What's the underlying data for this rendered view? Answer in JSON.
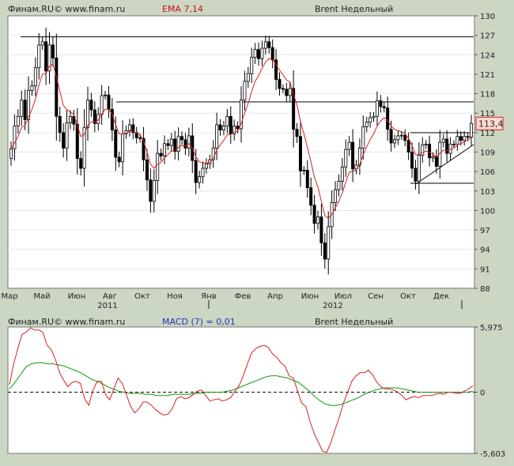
{
  "colors": {
    "background": "#cbd6c3",
    "plot_bg": "#ffffff",
    "candle": "#000000",
    "ema": "#d82020",
    "macd": "#d82020",
    "signal": "#0c9a0c",
    "last_price_box": "#ffd9d2",
    "last_price_border": "#d82020"
  },
  "chart_data": [
    {
      "type": "candlestick",
      "header": {
        "source": "Финам.RU© www.finam.ru",
        "indicator": "EMA 7,14",
        "title": "Brent Недельный"
      },
      "last_price_label": "113,4",
      "last_price": 113.4,
      "ylim": [
        88,
        130
      ],
      "y_ticks": [
        "130",
        "127",
        "124",
        "121",
        "118",
        "115",
        "112",
        "109",
        "106",
        "103",
        "100",
        "97",
        "94",
        "91",
        "88"
      ],
      "x_ticks": [
        "Мар",
        "Май",
        "Июн",
        "Авг",
        "Окт",
        "Ноя",
        "Янв",
        "Фев",
        "Апр",
        "Июн",
        "Июл",
        "Сен",
        "Окт",
        "Дек"
      ],
      "year_labels": [
        "2011",
        "2012"
      ],
      "closes": [
        109.5,
        113.0,
        114.5,
        117.0,
        114.0,
        118.5,
        119.2,
        122.0,
        125.5,
        126.0,
        121.5,
        125.5,
        123.5,
        114.5,
        112.0,
        109.6,
        113.5,
        114.5,
        113.3,
        108.0,
        106.5,
        112.8,
        117.0,
        115.5,
        113.4,
        114.8,
        117.7,
        117.8,
        115.6,
        112.4,
        108.2,
        107.5,
        111.8,
        112.3,
        113.2,
        112.0,
        111.2,
        111.1,
        107.8,
        104.7,
        101.4,
        104.6,
        108.8,
        108.4,
        110.3,
        110.0,
        111.0,
        109.1,
        111.4,
        110.9,
        109.6,
        111.5,
        107.7,
        104.3,
        105.2,
        106.5,
        107.2,
        107.8,
        109.6,
        113.2,
        112.4,
        113.0,
        114.5,
        111.8,
        113.0,
        112.6,
        117.0,
        119.9,
        121.1,
        123.6,
        124.8,
        123.4,
        125.0,
        126.0,
        125.1,
        123.2,
        120.2,
        118.8,
        118.7,
        117.7,
        118.8,
        112.5,
        111.4,
        106.1,
        106.2,
        103.5,
        100.8,
        98.0,
        99.0,
        95.0,
        92.5,
        97.5,
        101.2,
        103.2,
        104.5,
        106.7,
        109.4,
        110.5,
        106.4,
        107.0,
        109.6,
        112.9,
        113.6,
        114.3,
        114.5,
        116.9,
        116.0,
        115.8,
        112.5,
        110.4,
        110.9,
        111.5,
        111.6,
        110.8,
        109.0,
        106.5,
        104.5,
        108.5,
        110.1,
        110.2,
        108.1,
        108.3,
        106.8,
        110.5,
        111.0,
        108.8,
        110.2,
        110.2,
        111.4,
        110.8,
        111.4,
        111.3,
        113.4
      ],
      "ema_fast": [
        109.5,
        110.4,
        111.4,
        112.8,
        113.1,
        114.4,
        115.6,
        117.2,
        119.3,
        121.0,
        121.1,
        122.2,
        122.6,
        120.6,
        118.4,
        116.2,
        115.5,
        115.2,
        114.8,
        113.1,
        111.4,
        111.7,
        113.1,
        113.7,
        113.6,
        113.9,
        114.8,
        115.6,
        115.6,
        114.8,
        113.2,
        111.8,
        111.8,
        111.9,
        112.2,
        112.2,
        111.9,
        111.7,
        110.7,
        109.0,
        107.1,
        106.5,
        107.1,
        107.4,
        108.1,
        108.6,
        109.2,
        109.2,
        109.7,
        110.0,
        109.9,
        110.3,
        109.6,
        108.3,
        107.5,
        107.3,
        107.3,
        107.4,
        108.0,
        109.3,
        110.1,
        110.8,
        111.7,
        111.7,
        112.1,
        112.2,
        113.4,
        115.0,
        116.5,
        118.3,
        119.9,
        120.8,
        121.9,
        122.9,
        123.4,
        123.3,
        122.5,
        121.6,
        120.9,
        120.1,
        119.8,
        117.9,
        116.3,
        113.7,
        111.8,
        109.7,
        107.5,
        105.1,
        103.6,
        101.4,
        99.2,
        98.8,
        99.4,
        100.4,
        101.4,
        102.7,
        104.4,
        105.9,
        106.0,
        106.3,
        107.1,
        108.6,
        109.8,
        110.9,
        111.8,
        113.0,
        113.8,
        114.3,
        113.9,
        113.0,
        112.5,
        112.3,
        112.1,
        111.8,
        111.1,
        110.0,
        108.6,
        108.6,
        108.9,
        109.2,
        108.9,
        108.7,
        108.2,
        108.8,
        109.3,
        109.2,
        109.4,
        109.6,
        110.1,
        110.3,
        110.6,
        110.8,
        111.4
      ],
      "macd": [
        0.7,
        2.6,
        4.0,
        5.3,
        5.5,
        5.9,
        5.7,
        5.7,
        5.5,
        4.3,
        3.9,
        3.0,
        1.8,
        1.1,
        0.5,
        0.9,
        1.0,
        0.8,
        -0.6,
        -1.2,
        0.2,
        1.0,
        1.0,
        -0.2,
        -0.7,
        0.3,
        1.3,
        0.8,
        -0.2,
        -1.3,
        -1.9,
        -1.5,
        -0.9,
        -0.9,
        -1.2,
        -1.6,
        -1.9,
        -2.1,
        -2.0,
        -1.5,
        -0.6,
        -0.4,
        -0.6,
        -0.5,
        -0.2,
        0.1,
        0.2,
        -0.3,
        -0.8,
        -0.7,
        -0.6,
        -0.8,
        -0.7,
        -0.5,
        0.1,
        0.6,
        1.5,
        2.6,
        3.6,
        4.0,
        4.2,
        4.3,
        4.1,
        3.5,
        3.2,
        2.7,
        2.4,
        1.5,
        1.3,
        0.1,
        -1.0,
        -1.3,
        -2.7,
        -3.8,
        -4.6,
        -5.4,
        -5.5,
        -4.6,
        -3.4,
        -2.3,
        -1.0,
        0.0,
        1.0,
        1.5,
        1.8,
        1.8,
        2.0,
        1.6,
        0.9,
        0.5,
        0.3,
        0.3,
        0.2,
        0.0,
        -0.3,
        -0.7,
        -0.5,
        -0.4,
        -0.5,
        -0.3,
        -0.3,
        -0.3,
        -0.2,
        -0.1,
        -0.2,
        0.0,
        0.0,
        -0.1,
        -0.1,
        0.1,
        0.3,
        0.6
      ],
      "signal": [
        0.3,
        0.9,
        1.6,
        2.3,
        2.6,
        2.7,
        2.7,
        2.6,
        2.6,
        2.5,
        2.4,
        2.2,
        2.0,
        1.8,
        1.5,
        1.2,
        1.0,
        0.8,
        0.5,
        0.3,
        0.1,
        0.0,
        -0.1,
        -0.1,
        -0.1,
        -0.2,
        -0.2,
        -0.3,
        -0.3,
        -0.3,
        -0.2,
        -0.2,
        -0.2,
        -0.2,
        -0.1,
        -0.1,
        0.0,
        0.0,
        0.0,
        0.0,
        0.1,
        0.2,
        0.4,
        0.6,
        0.8,
        1.0,
        1.2,
        1.4,
        1.5,
        1.5,
        1.4,
        1.3,
        1.1,
        0.9,
        0.5,
        0.1,
        -0.4,
        -0.8,
        -1.1,
        -1.2,
        -1.2,
        -1.1,
        -0.9,
        -0.7,
        -0.5,
        -0.2,
        0.0,
        0.2,
        0.3,
        0.4,
        0.4,
        0.4,
        0.3,
        0.2,
        0.1,
        0.0,
        0.0,
        0.0,
        0.0,
        0.0,
        0.0,
        0.0,
        0.0,
        0.0,
        0.0,
        0.1
      ]
    },
    {
      "type": "line",
      "header": {
        "source": "Финам.RU© www.finam.ru",
        "indicator": "MACD (7) = 0,01",
        "title": "Brent Недельный"
      },
      "ylim": [
        -5.603,
        5.975
      ],
      "y_ticks": [
        "5,975",
        "0",
        "-5,603"
      ],
      "series": [
        {
          "key": "macd"
        },
        {
          "key": "signal"
        }
      ],
      "zero_line": true
    }
  ]
}
